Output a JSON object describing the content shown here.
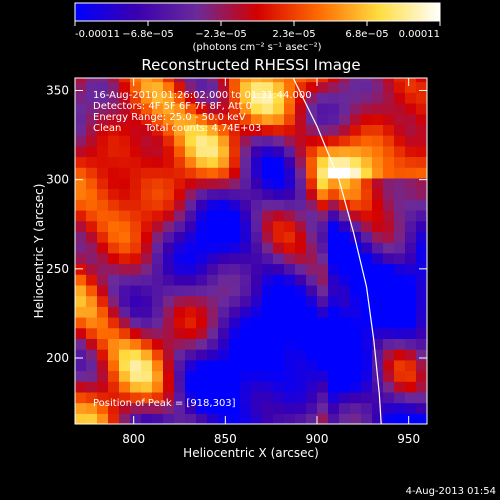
{
  "chart_data": {
    "type": "heatmap",
    "title": "Reconstructed RHESSI Image",
    "xlabel": "Heliocentric X (arcsec)",
    "ylabel": "Heliocentric Y (arcsec)",
    "xlim": [
      768,
      960
    ],
    "ylim": [
      163,
      357
    ],
    "xticks": [
      800,
      850,
      900,
      950
    ],
    "yticks": [
      200,
      250,
      300,
      350
    ],
    "colorbar": {
      "unit_label": "(photons cm⁻² s⁻¹ asec⁻²)",
      "min": -0.00011,
      "max": 0.00011,
      "tick_labels": [
        "-0.00011",
        "−6.8e−05",
        "−2.3e−05",
        "2.3e−05",
        "6.8e−05",
        "0.00011"
      ],
      "colors": [
        "#0000ff",
        "#3a00b0",
        "#6a2a9a",
        "#d40000",
        "#ff6a00",
        "#ffdd40",
        "#ffffff"
      ]
    },
    "limb_curve": [
      [
        887,
        357
      ],
      [
        900,
        330
      ],
      [
        912,
        300
      ],
      [
        920,
        270
      ],
      [
        927,
        240
      ],
      [
        931,
        210
      ],
      [
        934,
        180
      ],
      [
        935,
        163
      ]
    ],
    "peak_position": [
      918,
      303
    ],
    "annotations": {
      "time_range": "16-Aug-2010 01:26:02.000 to 01:31:44.000",
      "detectors": "Detectors: 4F 5F 6F 7F 8F, Att 0",
      "energy": "Energy Range: 25.0 - 50.0 keV",
      "method": "Clean",
      "total_counts": "Total counts: 4.74E+03",
      "peak": "Position of Peak = [918,303]"
    },
    "footer_timestamp": "4-Aug-2013 01:54"
  }
}
